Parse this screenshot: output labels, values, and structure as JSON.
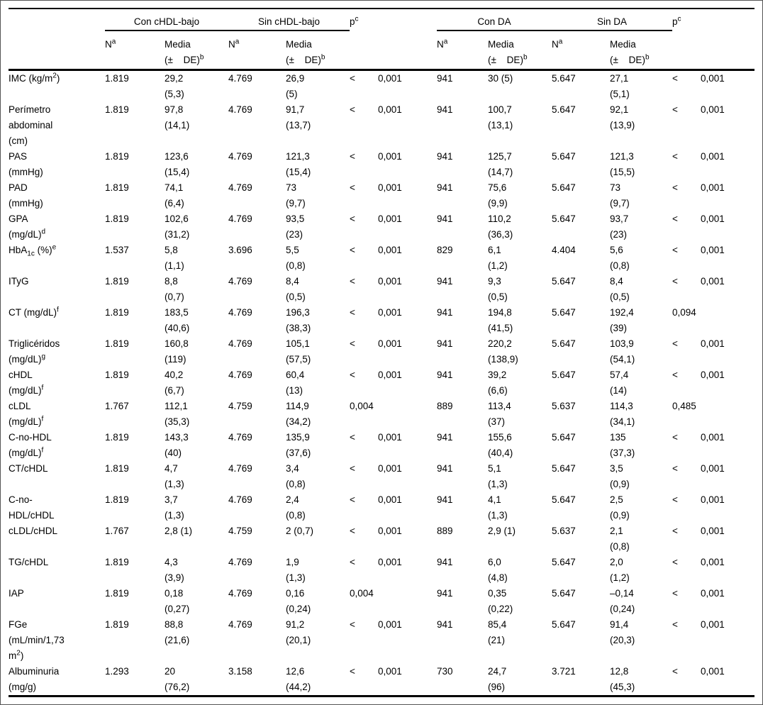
{
  "header": {
    "groups": [
      {
        "label": ""
      },
      {
        "label": "Con cHDL-bajo"
      },
      {
        "label": "Sin cHDL-bajo"
      },
      {
        "label": "p^c^"
      },
      {
        "label": "Con DA"
      },
      {
        "label": "Sin DA"
      },
      {
        "label": "p^c^"
      }
    ],
    "subheader": [
      "",
      "N^a^",
      "Media|(± DE)^b^",
      "N^a^",
      "Media|(± DE)^b^",
      "",
      "N^a^",
      "Media|(± DE)^b^",
      "N^a^",
      "Media|(± DE)^b^",
      ""
    ]
  },
  "rows": [
    {
      "label": "IMC (kg/m^2^)",
      "cells": [
        "1.819",
        "29,2|(5,3)",
        "4.769",
        "26,9|(5)",
        "< 0,001",
        "941",
        "30 (5)",
        "5.647",
        "27,1|(5,1)",
        "< 0,001"
      ]
    },
    {
      "label": "Perímetro|abdominal|(cm)",
      "cells": [
        "1.819",
        "97,8|(14,1)",
        "4.769",
        "91,7|(13,7)",
        "< 0,001",
        "941",
        "100,7|(13,1)",
        "5.647",
        "92,1|(13,9)",
        "< 0,001"
      ]
    },
    {
      "label": "PAS|(mmHg)",
      "cells": [
        "1.819",
        "123,6|(15,4)",
        "4.769",
        "121,3|(15,4)",
        "< 0,001",
        "941",
        "125,7|(14,7)",
        "5.647",
        "121,3|(15,5)",
        "< 0,001"
      ]
    },
    {
      "label": "PAD|(mmHg)",
      "cells": [
        "1.819",
        "74,1|(6,4)",
        "4.769",
        "73|(9,7)",
        "< 0,001",
        "941",
        "75,6|(9,9)",
        "5.647",
        "73|(9,7)",
        "< 0,001"
      ]
    },
    {
      "label": "GPA|(mg/dL)^d^",
      "cells": [
        "1.819",
        "102,6|(31,2)",
        "4.769",
        "93,5|(23)",
        "< 0,001",
        "941",
        "110,2|(36,3)",
        "5.647",
        "93,7|(23)",
        "< 0,001"
      ]
    },
    {
      "label": "HbA~1c~ (%)^e^",
      "cells": [
        "1.537",
        "5,8|(1,1)",
        "3.696",
        "5,5|(0,8)",
        "< 0,001",
        "829",
        "6,1|(1,2)",
        "4.404",
        "5,6|(0,8)",
        "< 0,001"
      ]
    },
    {
      "label": "ITyG",
      "cells": [
        "1.819",
        "8,8|(0,7)",
        "4.769",
        "8,4|(0,5)",
        "< 0,001",
        "941",
        "9,3|(0,5)",
        "5.647",
        "8,4|(0,5)",
        "< 0,001"
      ]
    },
    {
      "label": "CT (mg/dL)^f^",
      "cells": [
        "1.819",
        "183,5|(40,6)",
        "4.769",
        "196,3|(38,3)",
        "< 0,001",
        "941",
        "194,8|(41,5)",
        "5.647",
        "192,4|(39)",
        "0,094"
      ]
    },
    {
      "label": "Triglicéridos|(mg/dL)^g^",
      "cells": [
        "1.819",
        "160,8|(119)",
        "4.769",
        "105,1|(57,5)",
        "< 0,001",
        "941",
        "220,2|(138,9)",
        "5.647",
        "103,9|(54,1)",
        "< 0,001"
      ]
    },
    {
      "label": "cHDL|(mg/dL)^f^",
      "cells": [
        "1.819",
        "40,2|(6,7)",
        "4.769",
        "60,4|(13)",
        "< 0,001",
        "941",
        "39,2|(6,6)",
        "5.647",
        "57,4|(14)",
        "< 0,001"
      ]
    },
    {
      "label": "cLDL|(mg/dL)^f^",
      "cells": [
        "1.767",
        "112,1|(35,3)",
        "4.759",
        "114,9|(34,2)",
        "0,004",
        "889",
        "113,4|(37)",
        "5.637",
        "114,3|(34,1)",
        "0,485"
      ]
    },
    {
      "label": "C-no-HDL|(mg/dL)^f^",
      "cells": [
        "1.819",
        "143,3|(40)",
        "4.769",
        "135,9|(37,6)",
        "< 0,001",
        "941",
        "155,6|(40,4)",
        "5.647",
        "135|(37,3)",
        "< 0,001"
      ]
    },
    {
      "label": "CT/cHDL",
      "cells": [
        "1.819",
        "4,7|(1,3)",
        "4.769",
        "3,4|(0,8)",
        "< 0,001",
        "941",
        "5,1|(1,3)",
        "5.647",
        "3,5|(0,9)",
        "< 0,001"
      ]
    },
    {
      "label": "C-no-|HDL/cHDL",
      "cells": [
        "1.819",
        "3,7|(1,3)",
        "4.769",
        "2,4|(0,8)",
        "< 0,001",
        "941",
        "4,1|(1,3)",
        "5.647",
        "2,5|(0,9)",
        "< 0,001"
      ]
    },
    {
      "label": "cLDL/cHDL",
      "cells": [
        "1.767",
        "2,8 (1)",
        "4.759",
        "2 (0,7)",
        "< 0,001",
        "889",
        "2,9 (1)",
        "5.637",
        "2,1|(0,8)",
        "< 0,001"
      ]
    },
    {
      "label": "TG/cHDL",
      "cells": [
        "1.819",
        "4,3|(3,9)",
        "4.769",
        "1,9|(1,3)",
        "< 0,001",
        "941",
        "6,0|(4,8)",
        "5.647",
        "2,0|(1,2)",
        "< 0,001"
      ]
    },
    {
      "label": "IAP",
      "cells": [
        "1.819",
        "0,18|(0,27)",
        "4.769",
        "0,16|(0,24)",
        "0,004",
        "941",
        "0,35|(0,22)",
        "5.647",
        "–0,14|(0,24)",
        "< 0,001"
      ]
    },
    {
      "label": "FGe|(mL/min/1,73|m^2^)",
      "cells": [
        "1.819",
        "88,8|(21,6)",
        "4.769",
        "91,2|(20,1)",
        "< 0,001",
        "941",
        "85,4|(21)",
        "5.647",
        "91,4|(20,3)",
        "< 0,001"
      ]
    },
    {
      "label": "Albuminuria|(mg/g)",
      "cells": [
        "1.293",
        "20|(76,2)",
        "3.158",
        "12,6|(44,2)",
        "< 0,001",
        "730",
        "24,7|(96)",
        "3.721",
        "12,8|(45,3)",
        "< 0,001"
      ]
    }
  ],
  "colors": {
    "text": "#000000",
    "rule": "#000000",
    "background": "#ffffff"
  }
}
